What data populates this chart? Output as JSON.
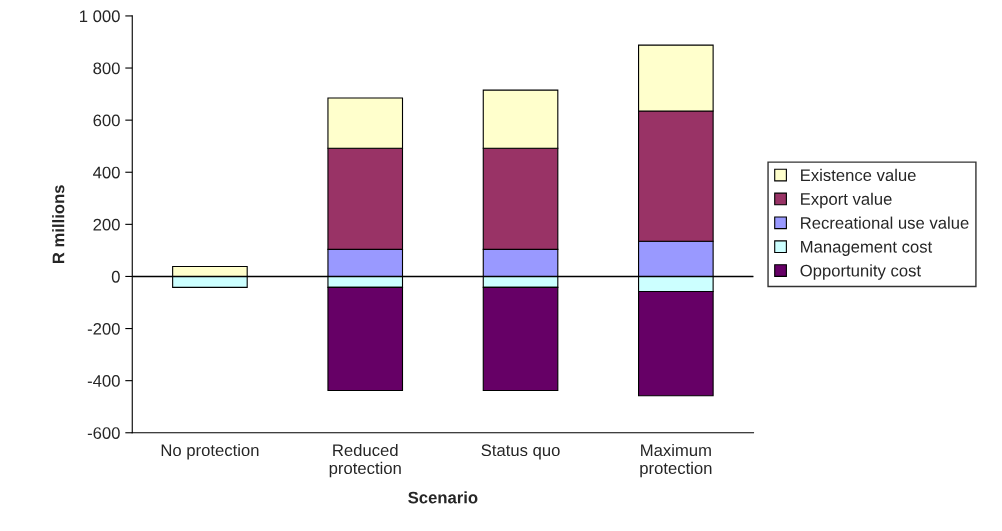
{
  "chart_data": {
    "type": "bar",
    "stacked": true,
    "xlabel": "Scenario",
    "ylabel": "R millions",
    "categories": [
      "No protection",
      "Reduced\nprotection",
      "Status quo",
      "Maximum\nprotection"
    ],
    "series": [
      {
        "name": "Recreational use value",
        "color": "#9999ff",
        "values": [
          0,
          104,
          104,
          135
        ]
      },
      {
        "name": "Export value",
        "color": "#993366",
        "values": [
          0,
          388,
          388,
          500
        ]
      },
      {
        "name": "Existence value",
        "color": "#ffffcc",
        "values": [
          38,
          193,
          223,
          253
        ]
      },
      {
        "name": "Management cost",
        "color": "#ccffff",
        "values": [
          -42,
          -42,
          -42,
          -58
        ]
      },
      {
        "name": "Opportunity cost",
        "color": "#660066",
        "values": [
          0,
          -396,
          -396,
          -400
        ]
      }
    ],
    "ylim": [
      -600,
      1000
    ],
    "yticks": [
      -600,
      -400,
      -200,
      0,
      200,
      400,
      600,
      800,
      {
        "value": 1000,
        "label": "1 000"
      }
    ],
    "ref_lines": [
      {
        "axis": "y",
        "value": 0,
        "color": "#000000"
      }
    ],
    "grid": false,
    "legend": "right"
  }
}
